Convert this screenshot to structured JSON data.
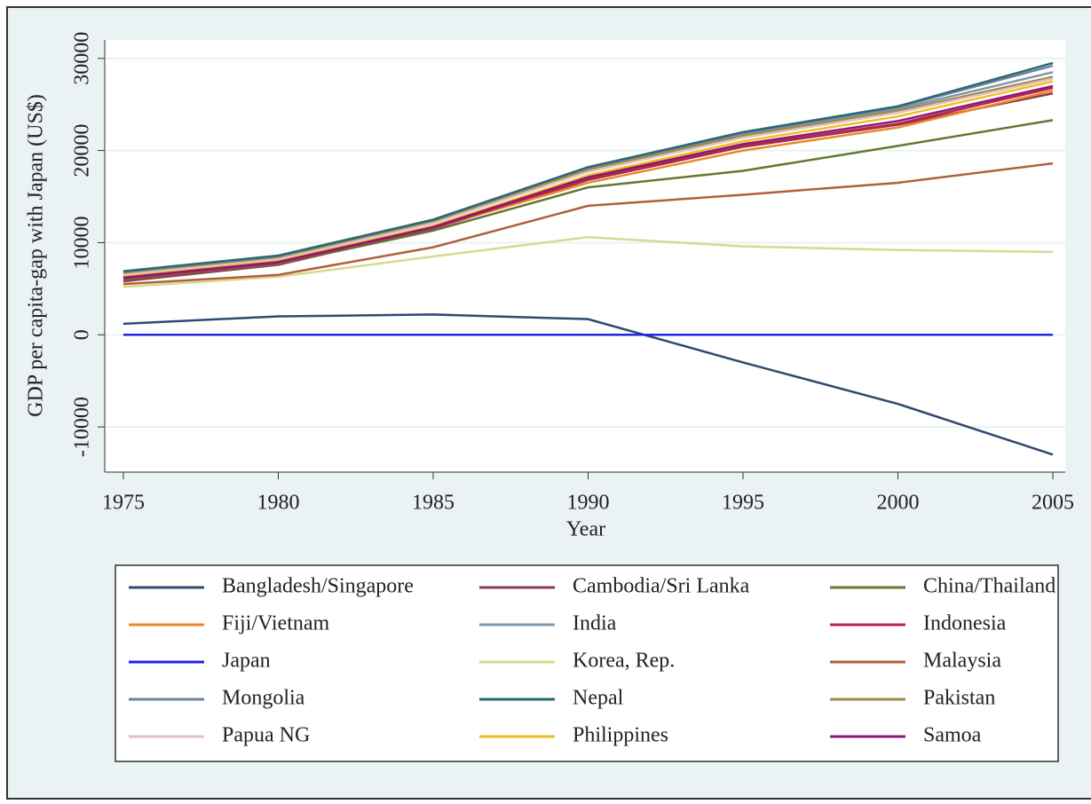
{
  "chart_data": {
    "type": "line",
    "x": [
      1975,
      1980,
      1985,
      1990,
      1995,
      2000,
      2005
    ],
    "xlim": [
      1974.4,
      2005.4
    ],
    "xticks": [
      1975,
      1980,
      1985,
      1990,
      1995,
      2000,
      2005
    ],
    "ylim": [
      -14900,
      32000
    ],
    "yticks": [
      -10000,
      0,
      10000,
      20000,
      30000
    ],
    "xlabel": "Year",
    "ylabel": "GDP per capita-gap with Japan (US$)",
    "grid": true,
    "legend": "bottom",
    "series": [
      {
        "name": "Bangladesh/Singapore",
        "color": "#2f4a6e",
        "values": [
          1200,
          2000,
          2200,
          1700,
          -3000,
          -7500,
          -13000
        ]
      },
      {
        "name": "Cambodia/Sri Lanka",
        "color": "#8b3a4e",
        "values": [
          5800,
          7600,
          11500,
          16800,
          20400,
          22800,
          26200
        ]
      },
      {
        "name": "China/Thailand",
        "color": "#5f7a32",
        "values": [
          6000,
          7700,
          11300,
          16000,
          17800,
          20500,
          23300
        ]
      },
      {
        "name": "Fiji/Vietnam",
        "color": "#e8892a",
        "values": [
          6200,
          7900,
          11600,
          16500,
          20000,
          22500,
          26500
        ]
      },
      {
        "name": "India",
        "color": "#7f96ab",
        "values": [
          6700,
          8400,
          12300,
          18000,
          21800,
          24500,
          28500
        ]
      },
      {
        "name": "Indonesia",
        "color": "#c0204a",
        "values": [
          6100,
          7800,
          11600,
          16900,
          20500,
          22900,
          26800
        ]
      },
      {
        "name": "Japan",
        "color": "#2424e0",
        "values": [
          0,
          0,
          0,
          0,
          0,
          0,
          0
        ]
      },
      {
        "name": "Korea, Rep.",
        "color": "#d8d890",
        "values": [
          5200,
          6300,
          8500,
          10600,
          9600,
          9200,
          9000
        ]
      },
      {
        "name": "Malaysia",
        "color": "#b0603a",
        "values": [
          5500,
          6500,
          9500,
          14000,
          15200,
          16500,
          18600
        ]
      },
      {
        "name": "Mongolia",
        "color": "#7080a0",
        "values": [
          6800,
          8500,
          12400,
          18100,
          21900,
          24700,
          29200
        ]
      },
      {
        "name": "Nepal",
        "color": "#2a6a70",
        "values": [
          6900,
          8600,
          12500,
          18200,
          22000,
          24800,
          29500
        ]
      },
      {
        "name": "Pakistan",
        "color": "#a08a4a",
        "values": [
          6600,
          8300,
          12200,
          17900,
          21600,
          24300,
          28000
        ]
      },
      {
        "name": "Papua NG",
        "color": "#e0c0c0",
        "values": [
          6500,
          8200,
          12100,
          17700,
          21400,
          24100,
          27800
        ]
      },
      {
        "name": "Philippines",
        "color": "#f0c020",
        "values": [
          6300,
          8000,
          11800,
          17300,
          21000,
          23700,
          27500
        ]
      },
      {
        "name": "Samoa",
        "color": "#8a1a7a",
        "values": [
          6200,
          7900,
          11700,
          17100,
          20700,
          23200,
          27000
        ]
      }
    ]
  }
}
